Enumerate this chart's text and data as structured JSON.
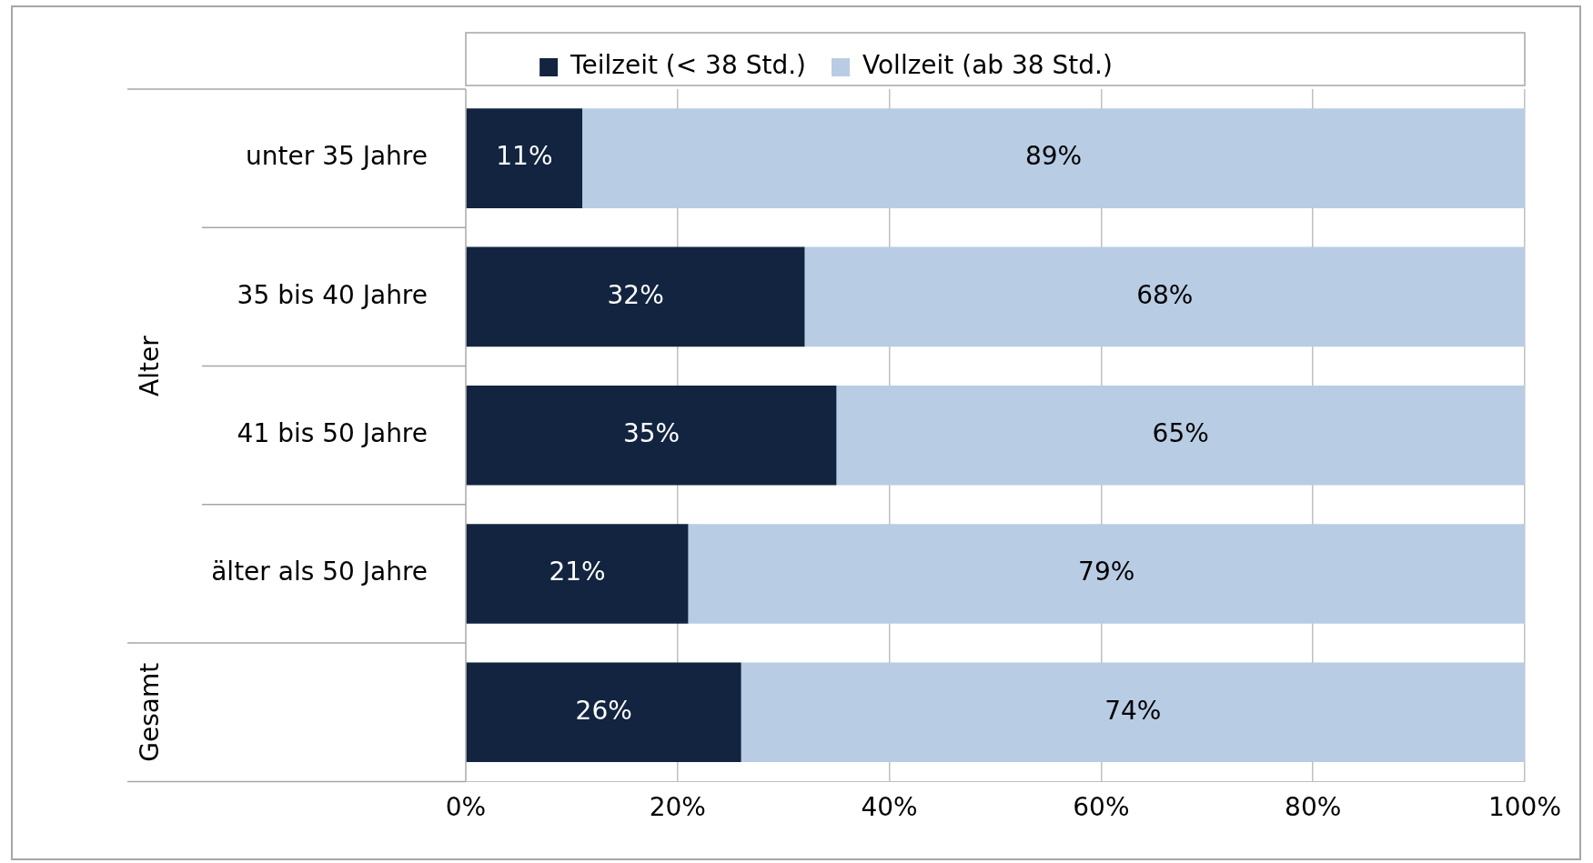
{
  "chart_data": {
    "type": "bar",
    "orientation": "horizontal",
    "stacked": true,
    "categories": [
      "unter 35 Jahre",
      "35 bis 40 Jahre",
      "41 bis 50 Jahre",
      "älter als 50 Jahre",
      null
    ],
    "series": [
      {
        "name": "Teilzeit (< 38 Std.)",
        "color": "#12243f",
        "values": [
          11,
          32,
          35,
          21,
          26
        ]
      },
      {
        "name": "Vollzeit (ab 38 Std.)",
        "color": "#b8cce4",
        "values": [
          89,
          68,
          65,
          79,
          74
        ]
      }
    ],
    "xlim": [
      0,
      100
    ],
    "xticks": [
      {
        "value": 0,
        "label": "0%"
      },
      {
        "value": 20,
        "label": "20%"
      },
      {
        "value": 40,
        "label": "40%"
      },
      {
        "value": 60,
        "label": "60%"
      },
      {
        "value": 80,
        "label": "80%"
      },
      {
        "value": 100,
        "label": "100%"
      }
    ],
    "value_labels": [
      [
        "11%",
        "32%",
        "35%",
        "21%",
        "26%"
      ],
      [
        "89%",
        "68%",
        "65%",
        "79%",
        "74%"
      ]
    ],
    "annotations": [
      "Alter",
      "Gesamt"
    ],
    "grid": "x",
    "legend": "top"
  }
}
